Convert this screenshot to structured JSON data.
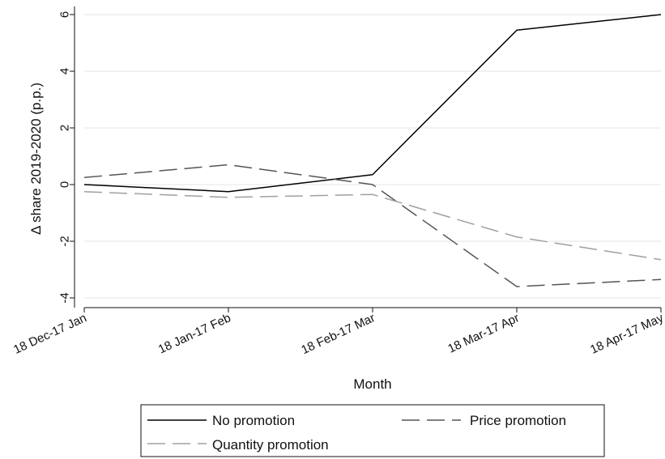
{
  "chart_data": {
    "type": "line",
    "categories": [
      "18 Dec-17 Jan",
      "18 Jan-17 Feb",
      "18 Feb-17 Mar",
      "18 Mar-17 Apr",
      "18 Apr-17 May"
    ],
    "series": [
      {
        "name": "No promotion",
        "values": [
          0.0,
          -0.25,
          0.35,
          5.45,
          6.0
        ],
        "color": "#000000",
        "dash": "solid"
      },
      {
        "name": "Price promotion",
        "values": [
          0.25,
          0.7,
          0.0,
          -3.6,
          -3.35
        ],
        "color": "#555555",
        "dash": "long-dash"
      },
      {
        "name": "Quantity promotion",
        "values": [
          -0.25,
          -0.45,
          -0.35,
          -1.85,
          -2.65
        ],
        "color": "#a0a0a0",
        "dash": "long-dash"
      }
    ],
    "xlabel": "Month",
    "ylabel": "Δ share 2019-2020 (p.p.)",
    "yticks": [
      -4,
      -2,
      0,
      2,
      4,
      6
    ],
    "ylim": [
      -4.3,
      6.2
    ],
    "grid": "horizontal",
    "legend_position": "bottom"
  }
}
